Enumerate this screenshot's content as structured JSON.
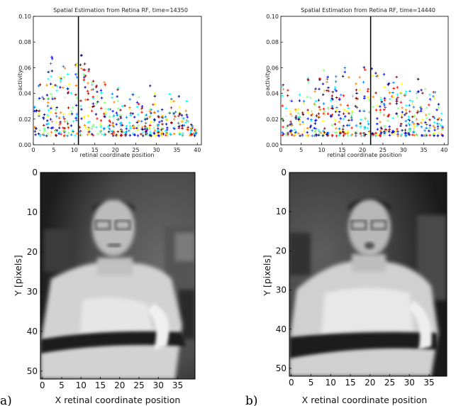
{
  "figure": {
    "panel_labels": [
      "a)",
      "b)"
    ]
  },
  "chart_data": [
    {
      "type": "scatter",
      "title": "Spatial Estimation from Retina RF, time=14350",
      "xlabel": "retinal coordinate position",
      "ylabel": "activity",
      "xlim": [
        0,
        41
      ],
      "ylim": [
        0.0,
        0.1
      ],
      "xticks": [
        0,
        5,
        10,
        15,
        20,
        25,
        30,
        35,
        40
      ],
      "yticks": [
        0.0,
        0.02,
        0.04,
        0.06,
        0.08,
        0.1
      ],
      "ytick_labels": [
        "0.00",
        "0.02",
        "0.04",
        "0.06",
        "0.08",
        "0.10"
      ],
      "marker": "+",
      "colormap": [
        "#00008f",
        "#0000ff",
        "#0080ff",
        "#00ffff",
        "#80ff80",
        "#ffff00",
        "#ff8000",
        "#ff0000",
        "#800000"
      ],
      "vertical_line_x": 11,
      "column_max": [
        0.042,
        0.058,
        0.038,
        0.06,
        0.069,
        0.05,
        0.062,
        0.064,
        0.06,
        0.066,
        0.068,
        0.072,
        0.064,
        0.062,
        0.055,
        0.06,
        0.052,
        0.058,
        0.038,
        0.042,
        0.05,
        0.034,
        0.032,
        0.036,
        0.06,
        0.04,
        0.032,
        0.03,
        0.046,
        0.04,
        0.03,
        0.028,
        0.024,
        0.04,
        0.036,
        0.04,
        0.026,
        0.034,
        0.018,
        0.012
      ],
      "grid": false,
      "legend": "none"
    },
    {
      "type": "scatter",
      "title": "Spatial Estimation from Retina RF, time=14440",
      "xlabel": "retinal coordinate position",
      "ylabel": "activity",
      "xlim": [
        0,
        41
      ],
      "ylim": [
        0.0,
        0.1
      ],
      "xticks": [
        0,
        5,
        10,
        15,
        20,
        25,
        30,
        35,
        40
      ],
      "yticks": [
        0.0,
        0.02,
        0.04,
        0.06,
        0.08,
        0.1
      ],
      "ytick_labels": [
        "0.00",
        "0.02",
        "0.04",
        "0.06",
        "0.08",
        "0.10"
      ],
      "marker": "+",
      "colormap": [
        "#00008f",
        "#0000ff",
        "#0080ff",
        "#00ffff",
        "#80ff80",
        "#ffff00",
        "#ff8000",
        "#ff0000",
        "#800000"
      ],
      "vertical_line_x": 22,
      "column_max": [
        0.05,
        0.046,
        0.036,
        0.03,
        0.04,
        0.036,
        0.056,
        0.05,
        0.046,
        0.054,
        0.06,
        0.062,
        0.054,
        0.062,
        0.06,
        0.064,
        0.062,
        0.06,
        0.048,
        0.054,
        0.064,
        0.052,
        0.06,
        0.062,
        0.058,
        0.056,
        0.05,
        0.06,
        0.054,
        0.05,
        0.044,
        0.042,
        0.036,
        0.052,
        0.048,
        0.044,
        0.04,
        0.046,
        0.032,
        0.03
      ],
      "grid": false,
      "legend": "none"
    },
    {
      "type": "heatmap",
      "xlabel": "X retinal coordinate position",
      "ylabel": "Y [pixels]",
      "xlim": [
        0,
        40
      ],
      "ylim": [
        52,
        0
      ],
      "xticks": [
        0,
        5,
        10,
        15,
        20,
        25,
        30,
        35
      ],
      "yticks": [
        0,
        10,
        20,
        30,
        40,
        50
      ],
      "colormap": "gray"
    },
    {
      "type": "heatmap",
      "xlabel": "X retinal coordinate position",
      "ylabel": "Y [pixels]",
      "xlim": [
        0,
        40
      ],
      "ylim": [
        52,
        0
      ],
      "xticks": [
        0,
        5,
        10,
        15,
        20,
        25,
        30,
        35
      ],
      "yticks": [
        0,
        10,
        20,
        30,
        40,
        50
      ],
      "colormap": "gray"
    }
  ]
}
